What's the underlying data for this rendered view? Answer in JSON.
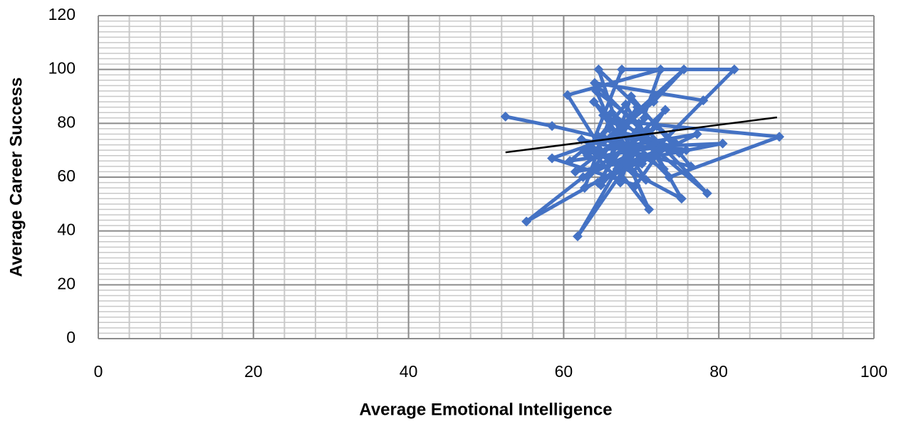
{
  "chart_data": {
    "type": "scatter",
    "x_label": "Average Emotional Intelligence",
    "y_label": "Average Career Success",
    "xlim": [
      0,
      100
    ],
    "xticks": [
      0,
      20,
      40,
      60,
      80,
      100
    ],
    "ylim": [
      0,
      120
    ],
    "yticks": [
      0,
      20,
      40,
      60,
      80,
      100,
      120
    ],
    "grid": true,
    "x_minor_step": 4,
    "y_minor_step": 2,
    "series": [
      {
        "color": "#4472c4",
        "x": [
          52.5,
          58.5,
          64.5,
          70.2,
          55.2,
          62.5,
          68.4,
          73.1,
          61.8,
          66.9,
          71.0,
          64.2,
          69.7,
          75.2,
          63.5,
          67.3,
          72.5,
          60.5,
          65.8,
          70.9,
          78.5,
          66.2,
          62.7,
          74.3,
          64.5,
          68.9,
          82.0,
          67.5,
          63.1,
          71.6,
          75.5,
          65.4,
          58.5,
          69.3,
          72.5,
          64.0,
          78.0,
          70.1,
          66.5,
          87.8,
          73.6,
          63.9,
          68.2,
          80.5,
          61.5,
          67.8,
          74.9,
          65.1,
          70.6,
          62.3,
          76.4,
          68.7,
          64.8,
          72.0,
          66.0,
          69.5,
          63.3,
          71.8,
          75.8,
          65.9,
          60.8,
          73.9,
          67.1,
          70.4,
          64.4,
          77.2,
          62.9,
          68.0,
          72.9,
          66.6
        ],
        "values": [
          82.5,
          79,
          75,
          68,
          43.5,
          60,
          72,
          85,
          38,
          63,
          48,
          92,
          80,
          52,
          70,
          58,
          100,
          90.5,
          66,
          77,
          54,
          84,
          56,
          73,
          100,
          62,
          100,
          100,
          68,
          88,
          100,
          74,
          67,
          57,
          70,
          95,
          88.5,
          65,
          81,
          75,
          60,
          88,
          71,
          72.5,
          62,
          76,
          69,
          83,
          59,
          74,
          64,
          90,
          57,
          79,
          67,
          86,
          61,
          73,
          70,
          78,
          66,
          72,
          64,
          82,
          58,
          76,
          69,
          87,
          63,
          74
        ]
      }
    ],
    "trendline": {
      "color": "#000000",
      "x": [
        52.5,
        87.5
      ],
      "values": [
        69.2,
        82.2
      ]
    }
  }
}
